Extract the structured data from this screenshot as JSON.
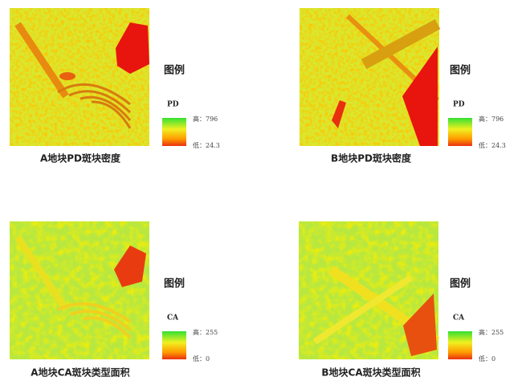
{
  "panels": [
    {
      "caption": "A地块PD斑块密度",
      "legend_title": "图例",
      "variable": "PD",
      "high": "高：796",
      "low": "低：24.3"
    },
    {
      "caption": "B地块PD斑块密度",
      "legend_title": "图例",
      "variable": "PD",
      "high": "高：796",
      "low": "低：24.3"
    },
    {
      "caption": "A地块CA斑块类型面积",
      "legend_title": "图例",
      "variable": "CA",
      "high": "高：255",
      "low": "低：0"
    },
    {
      "caption": "B地块CA斑块类型面积",
      "legend_title": "图例",
      "variable": "CA",
      "high": "高：255",
      "low": "低：0"
    }
  ]
}
